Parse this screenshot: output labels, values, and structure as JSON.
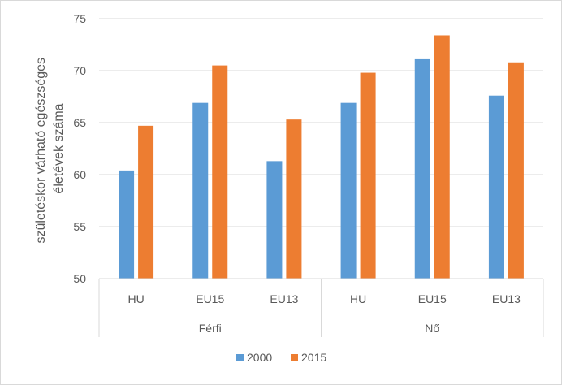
{
  "chart_data": {
    "type": "bar",
    "ylabel_lines": [
      "születéskor várható egészséges",
      "életévek száma"
    ],
    "ylim": [
      50,
      75
    ],
    "yticks": [
      50,
      55,
      60,
      65,
      70,
      75
    ],
    "grid": true,
    "legend_position": "bottom",
    "groups": [
      {
        "label": "Férfi",
        "categories": [
          "HU",
          "EU15",
          "EU13"
        ]
      },
      {
        "label": "Nő",
        "categories": [
          "HU",
          "EU15",
          "EU13"
        ]
      }
    ],
    "categories": [
      "HU",
      "EU15",
      "EU13",
      "HU",
      "EU15",
      "EU13"
    ],
    "series": [
      {
        "name": "2000",
        "color": "#5b9bd5",
        "values": [
          60.4,
          66.9,
          61.3,
          66.9,
          71.1,
          67.6
        ]
      },
      {
        "name": "2015",
        "color": "#ed7d31",
        "values": [
          64.7,
          70.5,
          65.3,
          69.8,
          73.4,
          70.8
        ]
      }
    ]
  }
}
